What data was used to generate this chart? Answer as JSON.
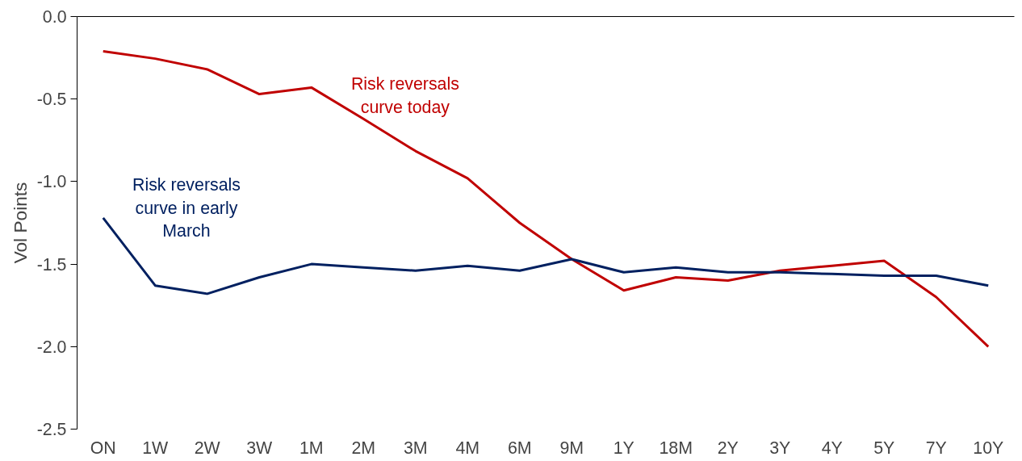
{
  "chart_data": {
    "type": "line",
    "ylabel": "Vol Points",
    "categories": [
      "ON",
      "1W",
      "2W",
      "3W",
      "1M",
      "2M",
      "3M",
      "4M",
      "6M",
      "9M",
      "1Y",
      "18M",
      "2Y",
      "3Y",
      "4Y",
      "5Y",
      "7Y",
      "10Y"
    ],
    "series": [
      {
        "name": "Risk reversals curve today",
        "color": "#c00000",
        "values": [
          -0.21,
          -0.255,
          -0.32,
          -0.47,
          -0.43,
          -0.62,
          -0.815,
          -0.98,
          -1.25,
          -1.47,
          -1.66,
          -1.58,
          -1.6,
          -1.54,
          -1.51,
          -1.48,
          -1.7,
          -2.0
        ]
      },
      {
        "name": "Risk reversals curve in early March",
        "color": "#002060",
        "values": [
          -1.22,
          -1.63,
          -1.68,
          -1.58,
          -1.5,
          -1.52,
          -1.54,
          -1.51,
          -1.54,
          -1.47,
          -1.55,
          -1.52,
          -1.55,
          -1.55,
          -1.56,
          -1.57,
          -1.57,
          -1.63
        ]
      }
    ],
    "ylim": [
      -2.5,
      0
    ],
    "yticks": [
      {
        "value": -2.5,
        "label": "-2.5"
      },
      {
        "value": -2.0,
        "label": "-2.0"
      },
      {
        "value": -1.5,
        "label": "-1.5"
      },
      {
        "value": -1.0,
        "label": "-1.0"
      },
      {
        "value": -0.5,
        "label": "-0.5"
      },
      {
        "value": 0,
        "label": "0.0"
      }
    ],
    "grid": false,
    "marker": "none",
    "line_style": "solid"
  }
}
